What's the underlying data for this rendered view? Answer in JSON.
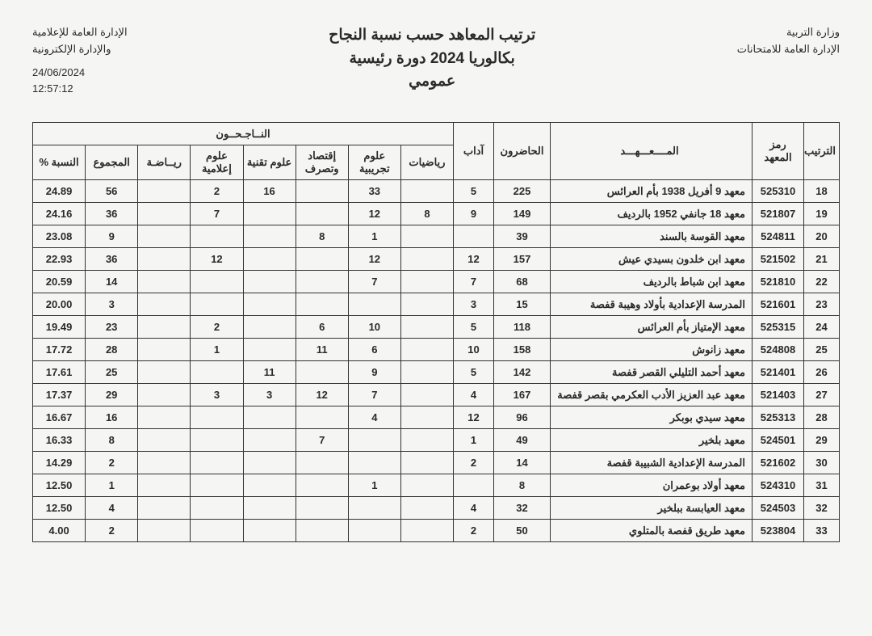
{
  "header": {
    "right_line1": "وزارة التربية",
    "right_line2": "الإدارة العامة للامتحانات",
    "center_line1": "ترتيب المعاهد حسب نسبة النجاح",
    "center_line2": "بكالوريا 2024 دورة رئيسية",
    "center_line3": "عمومي",
    "left_line1": "الإدارة العامة للإعلامية",
    "left_line2": "والإدارة الإلكترونية",
    "date": "24/06/2024",
    "time": "12:57:12"
  },
  "columns": {
    "rank": "الترتيب",
    "code": "رمز المعهد",
    "name": "المــــعـــهـــد",
    "attend": "الحاضرون",
    "successful_header": "النــاجـحــون",
    "adab": "آداب",
    "math": "رياضيات",
    "exp": "علوم تجريبية",
    "econ": "إقتصاد وتصرف",
    "tech": "علوم تقنية",
    "info": "علوم إعلامية",
    "sport": "ريــاضـة",
    "total": "المجموع",
    "pct": "النسبة %"
  },
  "rows": [
    {
      "rank": "18",
      "code": "525310",
      "name": "معهد 9 أفريل 1938 بأم العرائس",
      "attend": "225",
      "adab": "5",
      "math": "",
      "exp": "33",
      "econ": "",
      "tech": "16",
      "info": "2",
      "sport": "",
      "total": "56",
      "pct": "24.89"
    },
    {
      "rank": "19",
      "code": "521807",
      "name": "معهد 18 جانفي 1952 بالرديف",
      "attend": "149",
      "adab": "9",
      "math": "8",
      "exp": "12",
      "econ": "",
      "tech": "",
      "info": "7",
      "sport": "",
      "total": "36",
      "pct": "24.16"
    },
    {
      "rank": "20",
      "code": "524811",
      "name": "معهد القوسة بالسند",
      "attend": "39",
      "adab": "",
      "math": "",
      "exp": "1",
      "econ": "8",
      "tech": "",
      "info": "",
      "sport": "",
      "total": "9",
      "pct": "23.08"
    },
    {
      "rank": "21",
      "code": "521502",
      "name": "معهد ابن خلدون بسيدي عيش",
      "attend": "157",
      "adab": "12",
      "math": "",
      "exp": "12",
      "econ": "",
      "tech": "",
      "info": "12",
      "sport": "",
      "total": "36",
      "pct": "22.93"
    },
    {
      "rank": "22",
      "code": "521810",
      "name": "معهد ابن شباط  بالرديف",
      "attend": "68",
      "adab": "7",
      "math": "",
      "exp": "7",
      "econ": "",
      "tech": "",
      "info": "",
      "sport": "",
      "total": "14",
      "pct": "20.59"
    },
    {
      "rank": "23",
      "code": "521601",
      "name": "المدرسة الإعدادية بأولاد وهيبة قفصة",
      "attend": "15",
      "adab": "3",
      "math": "",
      "exp": "",
      "econ": "",
      "tech": "",
      "info": "",
      "sport": "",
      "total": "3",
      "pct": "20.00"
    },
    {
      "rank": "24",
      "code": "525315",
      "name": "معهد الإمتياز بأم العرائس",
      "attend": "118",
      "adab": "5",
      "math": "",
      "exp": "10",
      "econ": "6",
      "tech": "",
      "info": "2",
      "sport": "",
      "total": "23",
      "pct": "19.49"
    },
    {
      "rank": "25",
      "code": "524808",
      "name": "معهد زانوش",
      "attend": "158",
      "adab": "10",
      "math": "",
      "exp": "6",
      "econ": "11",
      "tech": "",
      "info": "1",
      "sport": "",
      "total": "28",
      "pct": "17.72"
    },
    {
      "rank": "26",
      "code": "521401",
      "name": "معهد أحمد التليلي القصر قفصة",
      "attend": "142",
      "adab": "5",
      "math": "",
      "exp": "9",
      "econ": "",
      "tech": "11",
      "info": "",
      "sport": "",
      "total": "25",
      "pct": "17.61"
    },
    {
      "rank": "27",
      "code": "521403",
      "name": "معهد عبد العزيز الأدب العكرمي بقصر قفصة",
      "attend": "167",
      "adab": "4",
      "math": "",
      "exp": "7",
      "econ": "12",
      "tech": "3",
      "info": "3",
      "sport": "",
      "total": "29",
      "pct": "17.37"
    },
    {
      "rank": "28",
      "code": "525313",
      "name": "معهد سيدي بوبكر",
      "attend": "96",
      "adab": "12",
      "math": "",
      "exp": "4",
      "econ": "",
      "tech": "",
      "info": "",
      "sport": "",
      "total": "16",
      "pct": "16.67"
    },
    {
      "rank": "29",
      "code": "524501",
      "name": "معهد بلخير",
      "attend": "49",
      "adab": "1",
      "math": "",
      "exp": "",
      "econ": "7",
      "tech": "",
      "info": "",
      "sport": "",
      "total": "8",
      "pct": "16.33"
    },
    {
      "rank": "30",
      "code": "521602",
      "name": "المدرسة الإعدادية الشبيبة  قفصة",
      "attend": "14",
      "adab": "2",
      "math": "",
      "exp": "",
      "econ": "",
      "tech": "",
      "info": "",
      "sport": "",
      "total": "2",
      "pct": "14.29"
    },
    {
      "rank": "31",
      "code": "524310",
      "name": "معهد أولاد بوعمران",
      "attend": "8",
      "adab": "",
      "math": "",
      "exp": "1",
      "econ": "",
      "tech": "",
      "info": "",
      "sport": "",
      "total": "1",
      "pct": "12.50"
    },
    {
      "rank": "32",
      "code": "524503",
      "name": "معهد العيابسة ببلخير",
      "attend": "32",
      "adab": "4",
      "math": "",
      "exp": "",
      "econ": "",
      "tech": "",
      "info": "",
      "sport": "",
      "total": "4",
      "pct": "12.50"
    },
    {
      "rank": "33",
      "code": "523804",
      "name": "معهد طريق قفصة بالمتلوي",
      "attend": "50",
      "adab": "2",
      "math": "",
      "exp": "",
      "econ": "",
      "tech": "",
      "info": "",
      "sport": "",
      "total": "2",
      "pct": "4.00"
    }
  ]
}
